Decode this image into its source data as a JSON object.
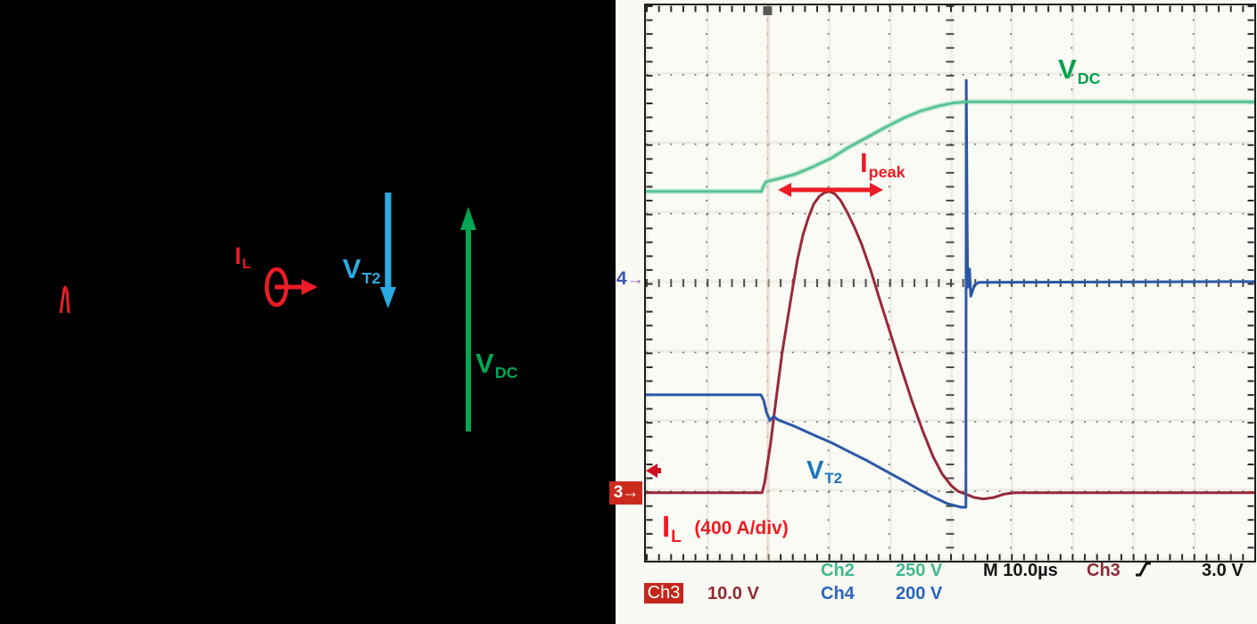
{
  "figure": {
    "circuit": {
      "il_label": {
        "main": "I",
        "sub": "L"
      },
      "vt2_label": {
        "main": "V",
        "sub": "T2"
      },
      "vdc_label": {
        "main": "V",
        "sub": "DC"
      },
      "colors": {
        "current": "#ee1c25",
        "vt2": "#29abe2",
        "vdc": "#00a651"
      }
    },
    "scope": {
      "markers": {
        "ch4_number": "4",
        "ch3_number": "3",
        "right_arrow": "→"
      },
      "labels": {
        "vdc": {
          "main": "V",
          "sub": "DC"
        },
        "vt2": {
          "main": "V",
          "sub": "T2"
        },
        "ipeak": {
          "main": "I",
          "sub": "peak"
        },
        "il": {
          "main": "I",
          "sub": "L",
          "scale_note": "(400 A/div)"
        }
      },
      "readout": {
        "ch2_name": "Ch2",
        "ch2_scale": "250 V",
        "ch4_name": "Ch4",
        "ch4_scale": "200 V",
        "ch3_name": "Ch3",
        "ch3_scale": "10.0 V",
        "timebase": "M 10.0µs",
        "trig_source": "Ch3",
        "trig_level": "3.0 V"
      },
      "colors": {
        "ch2_trace": "#58c392",
        "ch2_halo": "#c9ebda",
        "ch4_trace": "#2b58a6",
        "ch3_trace": "#97293a",
        "annotation_red": "#ec1c24",
        "label_green": "#00a14b",
        "label_blue": "#1b75bc",
        "readout_teal": "#3fb88f",
        "readout_blue": "#2a65bf",
        "readout_darkred": "#8e2b35"
      }
    }
  },
  "chart_data": {
    "type": "line",
    "instrument": "oscilloscope",
    "title": "Turn-on waveforms: VDC, VT2 and IL",
    "grid_divisions": {
      "x": 10,
      "y": 8
    },
    "timebase_per_div": "10.0 µs",
    "trigger": {
      "source": "Ch3",
      "slope": "rising",
      "level": "3.0 V",
      "position_div_from_left": 2,
      "level_marker_div_from_top": 6.66
    },
    "series": [
      {
        "name": "V_DC",
        "channel": "Ch2",
        "scale": "250 V/div",
        "zero_marker_div": null,
        "points_div": [
          [
            0,
            2.68
          ],
          [
            1.9,
            2.68
          ],
          [
            1.93,
            2.61
          ],
          [
            1.98,
            2.54
          ],
          [
            2.17,
            2.5
          ],
          [
            2.46,
            2.43
          ],
          [
            2.76,
            2.32
          ],
          [
            3.05,
            2.2
          ],
          [
            3.34,
            2.04
          ],
          [
            3.64,
            1.9
          ],
          [
            3.93,
            1.76
          ],
          [
            4.22,
            1.63
          ],
          [
            4.52,
            1.52
          ],
          [
            4.81,
            1.45
          ],
          [
            5.03,
            1.41
          ],
          [
            5.25,
            1.39
          ],
          [
            10,
            1.39
          ]
        ]
      },
      {
        "name": "V_T2",
        "channel": "Ch4",
        "scale": "200 V/div",
        "zero_marker_div": 3.99,
        "points_div": [
          [
            0,
            5.61
          ],
          [
            1.89,
            5.61
          ],
          [
            1.94,
            5.7
          ],
          [
            1.98,
            5.86
          ],
          [
            2.04,
            5.98
          ],
          [
            2.1,
            5.92
          ],
          [
            2.17,
            5.97
          ],
          [
            2.46,
            6.07
          ],
          [
            2.76,
            6.19
          ],
          [
            3.05,
            6.3
          ],
          [
            3.34,
            6.43
          ],
          [
            3.64,
            6.56
          ],
          [
            3.93,
            6.7
          ],
          [
            4.22,
            6.84
          ],
          [
            4.52,
            6.99
          ],
          [
            4.74,
            7.09
          ],
          [
            4.96,
            7.18
          ],
          [
            5.18,
            7.23
          ],
          [
            5.26,
            7.23
          ],
          [
            5.265,
            1.08
          ],
          [
            5.28,
            3.16
          ],
          [
            5.29,
            4.06
          ],
          [
            5.32,
            3.8
          ],
          [
            5.34,
            4.19
          ],
          [
            5.4,
            4.03
          ],
          [
            5.47,
            3.99
          ],
          [
            10,
            3.98
          ]
        ]
      },
      {
        "name": "I_L",
        "channel": "Ch3",
        "scale": "10.0 V/div (400 A/div)",
        "zero_marker_div": 7.02,
        "points_div": [
          [
            0,
            7.02
          ],
          [
            1.91,
            7.02
          ],
          [
            1.95,
            6.88
          ],
          [
            1.99,
            6.65
          ],
          [
            2.05,
            6.31
          ],
          [
            2.11,
            5.88
          ],
          [
            2.17,
            5.47
          ],
          [
            2.24,
            5.0
          ],
          [
            2.32,
            4.57
          ],
          [
            2.41,
            4.08
          ],
          [
            2.49,
            3.67
          ],
          [
            2.58,
            3.31
          ],
          [
            2.67,
            3.06
          ],
          [
            2.76,
            2.86
          ],
          [
            2.85,
            2.75
          ],
          [
            2.93,
            2.7
          ],
          [
            3.02,
            2.68
          ],
          [
            3.11,
            2.72
          ],
          [
            3.2,
            2.81
          ],
          [
            3.31,
            2.98
          ],
          [
            3.43,
            3.2
          ],
          [
            3.55,
            3.45
          ],
          [
            3.7,
            3.83
          ],
          [
            3.84,
            4.23
          ],
          [
            4.02,
            4.73
          ],
          [
            4.19,
            5.21
          ],
          [
            4.37,
            5.69
          ],
          [
            4.55,
            6.13
          ],
          [
            4.72,
            6.5
          ],
          [
            4.87,
            6.75
          ],
          [
            5.02,
            6.92
          ],
          [
            5.13,
            7.0
          ],
          [
            5.25,
            7.04
          ],
          [
            5.4,
            7.09
          ],
          [
            5.54,
            7.11
          ],
          [
            5.72,
            7.09
          ],
          [
            5.89,
            7.04
          ],
          [
            6.06,
            7.02
          ],
          [
            10,
            7.02
          ]
        ]
      }
    ],
    "annotations": [
      {
        "text": "I_peak",
        "kind": "double-arrow",
        "x_div_start": 2.28,
        "x_div_end": 3.75,
        "y_div": 2.64
      },
      {
        "text": "I_L (400 A/div)",
        "kind": "label"
      },
      {
        "text": "V_DC",
        "kind": "label"
      },
      {
        "text": "V_T2",
        "kind": "label"
      }
    ],
    "legend_position": "none",
    "grid": true
  }
}
